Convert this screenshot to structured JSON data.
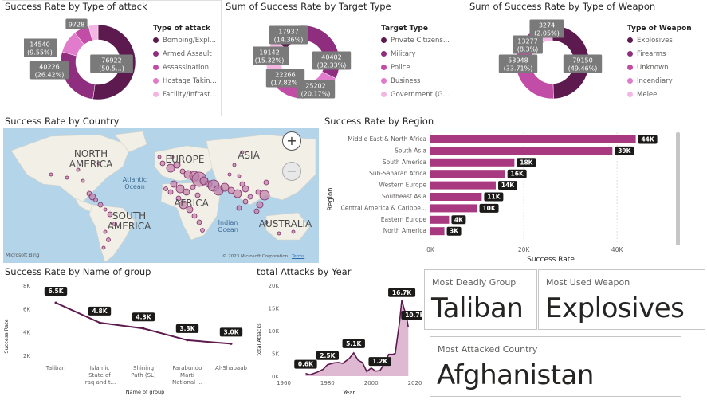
{
  "colors": {
    "c1": "#5c1a4e",
    "c2": "#8f2d7f",
    "c3": "#c24da7",
    "c4": "#e07ccb",
    "c5": "#f3b6e3",
    "bar": "#a8387f",
    "line": "#5c1a4e",
    "area": "#d7a6c7"
  },
  "attack": {
    "title": "Success Rate by Type of attack",
    "legend_title": "Type of attack",
    "legend": [
      "Bombing/Expl...",
      "Armed Assault",
      "Assassination",
      "Hostage Takin...",
      "Facility/Infrast..."
    ],
    "labels": [
      "9728",
      "14540\n(9.55%)",
      "40226\n(26.42%)",
      "76922\n(50.5...)"
    ]
  },
  "target": {
    "title": "Sum of Success Rate by Target Type",
    "legend_title": "Target Type",
    "legend": [
      "Private Citizens...",
      "Military",
      "Police",
      "Business",
      "Government (G..."
    ],
    "labels": [
      "17937\n(14.36%)",
      "19142\n(15.32%)",
      "22266\n(17.82%)",
      "25202\n(20.17%)",
      "40402\n(32.33%)"
    ]
  },
  "weapon": {
    "title": "Sum of Success Rate by Type of Weapon",
    "legend_title": "Type of Weapon",
    "legend": [
      "Explosives",
      "Firearms",
      "Unknown",
      "Incendiary",
      "Melee"
    ],
    "labels": [
      "3274\n(2.05%)",
      "13277\n(8.3%)",
      "53948\n(33.71%)",
      "79150\n(49.46%)"
    ]
  },
  "map": {
    "title": "Success Rate by Country",
    "regions": [
      "NORTH\nAMERICA",
      "EUROPE",
      "ASIA",
      "AFRICA",
      "SOUTH\nAMERICA",
      "AUSTRALIA"
    ],
    "oceans": [
      "Atlantic\nOcean",
      "Indian\nOcean"
    ],
    "attribution": "© 2023 Microsoft Corporation",
    "terms": "Terms",
    "logo": "Microsoft Bing",
    "zoom_in": "+",
    "zoom_out": "−"
  },
  "region": {
    "title": "Success Rate by Region",
    "xlabel": "Success Rate",
    "ylabel": "Region",
    "ticks": [
      "0K",
      "20K",
      "40K"
    ]
  },
  "group": {
    "title": "Success Rate by Name of group",
    "xlabel": "Name of group",
    "ylabel": "Success Rate",
    "yticks": [
      "8K",
      "6K",
      "4K",
      "2K"
    ],
    "xlabels": [
      "Taliban",
      "Islamic\nState of\nIraq and t...",
      "Shining\nPath (SL)",
      "Farabundo\nMarti\nNational ...",
      "Al-Shabaab"
    ]
  },
  "year": {
    "title": "total Attacks by Year",
    "xlabel": "Year",
    "ylabel": "total Attacks",
    "yticks": [
      "20K",
      "15K",
      "10K",
      "5K",
      "0K"
    ],
    "xticks": [
      "1960",
      "1980",
      "2000",
      "2020"
    ]
  },
  "cards": {
    "deadly": {
      "label": "Most Deadly Group",
      "value": "Taliban"
    },
    "weapon": {
      "label": "Most Used Weapon",
      "value": "Explosives"
    },
    "country": {
      "label": "Most Attacked Country",
      "value": "Afghanistan"
    }
  },
  "chart_data": [
    {
      "type": "pie",
      "title": "Success Rate by Type of attack",
      "categories": [
        "Bombing/Expl...",
        "Armed Assault",
        "Assassination",
        "Hostage Takin...",
        "Facility/Infrast..."
      ],
      "values": [
        76922,
        40226,
        14540,
        9728,
        null
      ]
    },
    {
      "type": "pie",
      "title": "Sum of Success Rate by Target Type",
      "categories": [
        "Private Citizens...",
        "Military",
        "Police",
        "Business",
        "Government (G..."
      ],
      "values": [
        40402,
        25202,
        22266,
        19142,
        17937
      ]
    },
    {
      "type": "pie",
      "title": "Sum of Success Rate by Type of Weapon",
      "categories": [
        "Explosives",
        "Firearms",
        "Unknown",
        "Incendiary",
        "Melee"
      ],
      "values": [
        79150,
        53948,
        13277,
        3274,
        null
      ]
    },
    {
      "type": "bar",
      "title": "Success Rate by Region",
      "categories": [
        "Middle East & North Africa",
        "South Asia",
        "South America",
        "Sub-Saharan Africa",
        "Western Europe",
        "Southeast Asia",
        "Central America & Caribbe...",
        "Eastern Europe",
        "North America"
      ],
      "values": [
        44000,
        39000,
        18000,
        16000,
        14000,
        11000,
        10000,
        4000,
        3000
      ],
      "labels": [
        "44K",
        "39K",
        "18K",
        "16K",
        "14K",
        "11K",
        "10K",
        "4K",
        "3K"
      ],
      "xlabel": "Success Rate",
      "ylabel": "Region",
      "xlim": [
        0,
        48000
      ]
    },
    {
      "type": "line",
      "title": "Success Rate by Name of group",
      "categories": [
        "Taliban",
        "Islamic State of Iraq and t...",
        "Shining Path (SL)",
        "Farabundo Marti National ...",
        "Al-Shabaab"
      ],
      "values": [
        6500,
        4800,
        4300,
        3300,
        3000
      ],
      "labels": [
        "6.5K",
        "4.8K",
        "4.3K",
        "3.3K",
        "3.0K"
      ],
      "xlabel": "Name of group",
      "ylabel": "Success Rate",
      "ylim": [
        2000,
        8000
      ]
    },
    {
      "type": "area",
      "title": "total Attacks by Year",
      "x": [
        1970,
        1972,
        1975,
        1978,
        1980,
        1983,
        1985,
        1987,
        1990,
        1992,
        1994,
        1996,
        1998,
        2000,
        2002,
        2004,
        2006,
        2008,
        2010,
        2011,
        2012,
        2013,
        2014,
        2015,
        2016,
        2017
      ],
      "values": [
        600,
        300,
        800,
        1500,
        2500,
        2900,
        3000,
        2800,
        3900,
        5100,
        3500,
        3000,
        1000,
        1800,
        1100,
        1200,
        2700,
        4800,
        4800,
        5000,
        8500,
        12000,
        16700,
        14900,
        13500,
        10700
      ],
      "point_labels": [
        {
          "x": 1970,
          "label": "0.6K"
        },
        {
          "x": 1980,
          "label": "2.5K"
        },
        {
          "x": 1992,
          "label": "5.1K"
        },
        {
          "x": 2004,
          "label": "1.2K"
        },
        {
          "x": 2014,
          "label": "16.7K"
        },
        {
          "x": 2017,
          "label": "10.7K"
        }
      ],
      "xlabel": "Year",
      "ylabel": "total Attacks",
      "ylim": [
        0,
        20000
      ]
    }
  ]
}
